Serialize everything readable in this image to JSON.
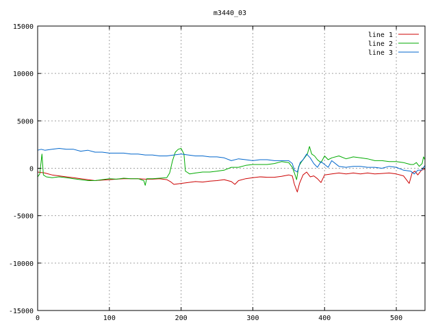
{
  "chart_data": {
    "type": "line",
    "title": "m3440_03",
    "xlabel": "",
    "ylabel": "",
    "xlim": [
      0,
      540
    ],
    "ylim": [
      -15000,
      15000
    ],
    "x_ticks": [
      0,
      100,
      200,
      300,
      400,
      500
    ],
    "y_ticks": [
      -15000,
      -10000,
      -5000,
      0,
      5000,
      10000,
      15000
    ],
    "grid": true,
    "legend_position": "top-right",
    "series": [
      {
        "name": "line 1",
        "color": "#cc0000",
        "x": [
          0,
          10,
          20,
          30,
          40,
          50,
          60,
          70,
          80,
          90,
          100,
          110,
          120,
          130,
          140,
          150,
          160,
          170,
          180,
          185,
          190,
          200,
          210,
          220,
          230,
          240,
          250,
          260,
          270,
          275,
          280,
          290,
          300,
          310,
          320,
          330,
          340,
          350,
          355,
          358,
          362,
          365,
          370,
          375,
          380,
          385,
          390,
          395,
          400,
          410,
          420,
          430,
          440,
          450,
          460,
          470,
          480,
          490,
          500,
          510,
          518,
          522,
          526,
          530,
          535,
          540
        ],
        "y": [
          -400,
          -500,
          -700,
          -800,
          -900,
          -1000,
          -1100,
          -1200,
          -1300,
          -1250,
          -1200,
          -1150,
          -1100,
          -1100,
          -1100,
          -1150,
          -1150,
          -1100,
          -1200,
          -1400,
          -1700,
          -1600,
          -1500,
          -1400,
          -1450,
          -1350,
          -1300,
          -1200,
          -1400,
          -1700,
          -1300,
          -1100,
          -1000,
          -900,
          -950,
          -950,
          -850,
          -700,
          -800,
          -1700,
          -2500,
          -1600,
          -700,
          -400,
          -900,
          -800,
          -1100,
          -1500,
          -700,
          -600,
          -500,
          -600,
          -500,
          -600,
          -500,
          -600,
          -550,
          -500,
          -600,
          -800,
          -1600,
          -500,
          -300,
          -700,
          -200,
          -100
        ]
      },
      {
        "name": "line 2",
        "color": "#00aa00",
        "x": [
          0,
          3,
          6,
          8,
          12,
          20,
          30,
          40,
          50,
          60,
          70,
          80,
          90,
          100,
          110,
          120,
          130,
          140,
          148,
          150,
          152,
          160,
          170,
          180,
          184,
          188,
          192,
          196,
          200,
          204,
          206,
          208,
          212,
          220,
          230,
          240,
          250,
          260,
          270,
          280,
          290,
          300,
          310,
          320,
          330,
          340,
          350,
          355,
          358,
          361,
          364,
          368,
          372,
          376,
          379,
          382,
          386,
          390,
          395,
          400,
          405,
          410,
          420,
          430,
          440,
          450,
          460,
          470,
          480,
          490,
          500,
          510,
          515,
          520,
          524,
          528,
          532,
          536,
          538,
          540
        ],
        "y": [
          -900,
          -600,
          1500,
          -700,
          -900,
          -1000,
          -900,
          -1000,
          -1100,
          -1200,
          -1300,
          -1300,
          -1200,
          -1100,
          -1150,
          -1050,
          -1100,
          -1100,
          -1300,
          -1800,
          -1100,
          -1100,
          -1050,
          -1000,
          -500,
          800,
          1700,
          2000,
          2100,
          1500,
          -300,
          -400,
          -600,
          -500,
          -400,
          -400,
          -300,
          -200,
          100,
          100,
          300,
          400,
          400,
          400,
          500,
          700,
          600,
          100,
          -500,
          -1200,
          200,
          700,
          1100,
          1500,
          2300,
          1500,
          1300,
          900,
          600,
          1300,
          900,
          1100,
          1300,
          1000,
          1200,
          1100,
          1000,
          800,
          800,
          700,
          700,
          600,
          500,
          400,
          400,
          600,
          200,
          500,
          1200,
          900
        ]
      },
      {
        "name": "line 3",
        "color": "#0066cc",
        "x": [
          0,
          5,
          10,
          20,
          30,
          40,
          50,
          60,
          70,
          80,
          90,
          100,
          110,
          120,
          130,
          140,
          150,
          160,
          170,
          180,
          190,
          200,
          210,
          220,
          230,
          240,
          250,
          260,
          270,
          280,
          290,
          300,
          310,
          320,
          330,
          340,
          350,
          355,
          358,
          362,
          366,
          370,
          375,
          380,
          385,
          390,
          395,
          400,
          405,
          410,
          420,
          430,
          440,
          450,
          460,
          470,
          480,
          490,
          500,
          510,
          520,
          525,
          530,
          535,
          540
        ],
        "y": [
          1900,
          2000,
          1900,
          2000,
          2100,
          2000,
          2000,
          1800,
          1900,
          1700,
          1700,
          1600,
          1600,
          1600,
          1500,
          1500,
          1400,
          1400,
          1300,
          1300,
          1400,
          1500,
          1400,
          1300,
          1300,
          1200,
          1200,
          1100,
          800,
          1000,
          900,
          800,
          900,
          900,
          800,
          800,
          800,
          500,
          -200,
          -400,
          600,
          900,
          1500,
          1100,
          500,
          100,
          700,
          400,
          100,
          800,
          200,
          100,
          200,
          200,
          100,
          100,
          0,
          200,
          100,
          -200,
          -300,
          -600,
          -200,
          -200,
          300
        ]
      }
    ]
  }
}
